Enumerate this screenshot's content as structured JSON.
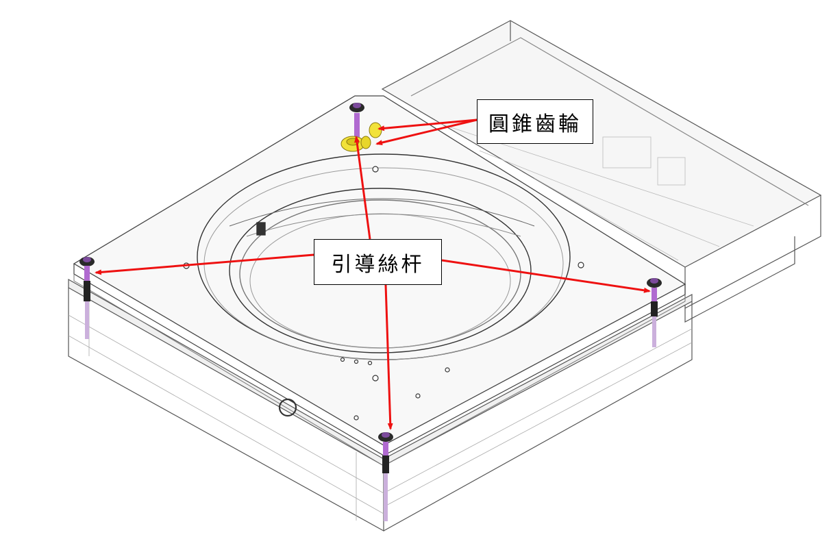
{
  "labels": {
    "bevel_gear": "圓錐齒輪",
    "lead_screw": "引導絲杆"
  },
  "colors": {
    "arrow": "#ee1111",
    "gear": "#f2e23a",
    "screw": "#b06ad0",
    "line": "#555555"
  }
}
